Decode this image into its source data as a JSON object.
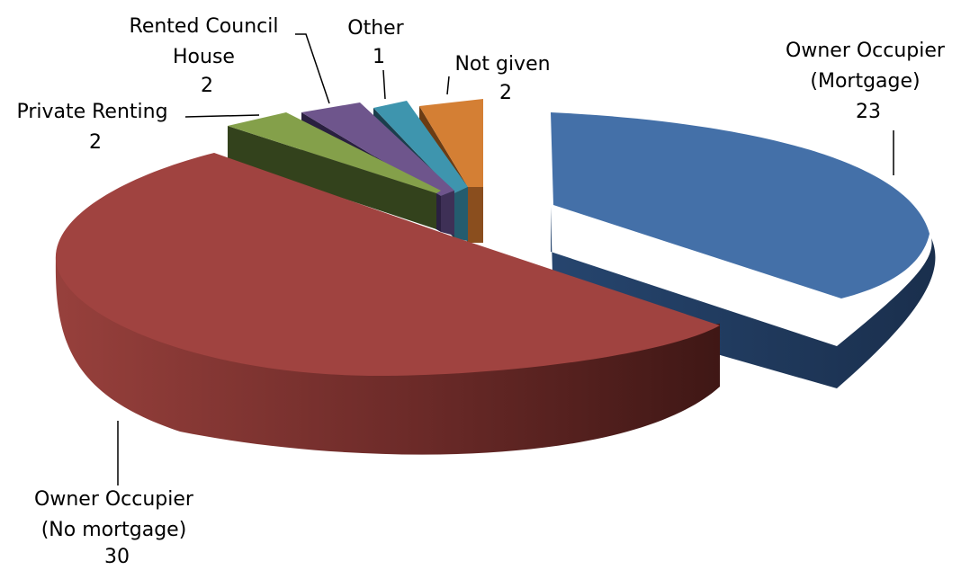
{
  "chart_data": {
    "type": "pie",
    "title": "",
    "style": "3d-exploded",
    "slices": [
      {
        "label_lines": [
          "Owner Occupier",
          "(Mortgage)"
        ],
        "value": 23,
        "value_label": "23",
        "color": "#4470A8"
      },
      {
        "label_lines": [
          "Owner Occupier",
          "(No mortgage)"
        ],
        "value": 30,
        "value_label": "30",
        "color": "#A04340"
      },
      {
        "label_lines": [
          "Private Renting"
        ],
        "value": 2,
        "value_label": "2",
        "color": "#84A04A"
      },
      {
        "label_lines": [
          "Rented Council",
          "House"
        ],
        "value": 2,
        "value_label": "2",
        "color": "#6E558C"
      },
      {
        "label_lines": [
          "Other"
        ],
        "value": 1,
        "value_label": "1",
        "color": "#3E95AE"
      },
      {
        "label_lines": [
          "Not given"
        ],
        "value": 2,
        "value_label": "2",
        "color": "#D47F34"
      }
    ]
  }
}
